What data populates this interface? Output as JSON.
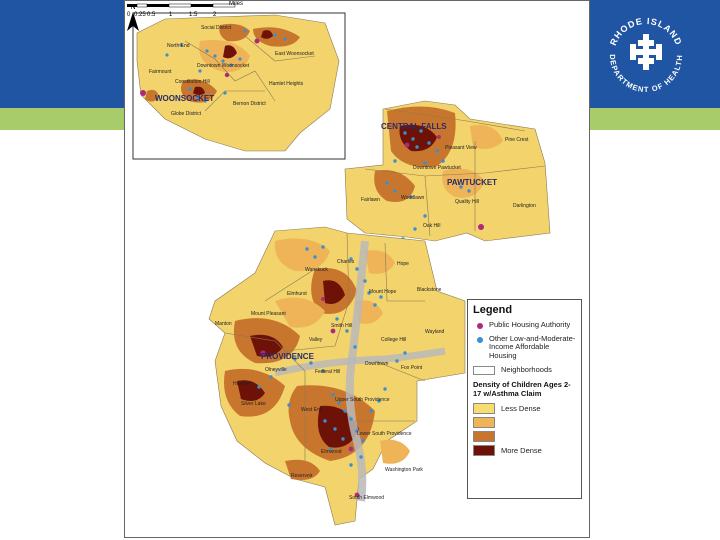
{
  "header": {
    "colors": {
      "band": "#1f55a3",
      "accent_stripe": "#a9cc6b"
    },
    "logo": {
      "icon": "ri-department-of-health-seal-icon",
      "text_top": "RHODE ISLAND",
      "text_bottom": "DEPARTMENT OF HEALTH"
    }
  },
  "map": {
    "inset": {
      "city": "WOONSOCKET",
      "neighborhoods": [
        "North End",
        "Social District",
        "East Woonsocket",
        "Fairmount",
        "Downtown Woonsocket",
        "Constitution Hill",
        "Globe District",
        "Bernon District",
        "Hamlet Heights"
      ]
    },
    "cities": [
      "CENTRAL FALLS",
      "PAWTUCKET",
      "PROVIDENCE"
    ],
    "neighborhoods": [
      "Fairlawn",
      "Pleasant View",
      "Downtown Pawtucket",
      "Pine Crest",
      "Quality Hill",
      "Darlington",
      "Woodlawn",
      "Oak Hill",
      "Charles",
      "Hope",
      "Wanskuck",
      "Elmhurst",
      "Mount Hope",
      "Blackstone",
      "Mount Pleasant",
      "Smith Hill",
      "Manton",
      "College Hill",
      "Wayland",
      "Valley",
      "Olneyville",
      "Federal Hill",
      "Downtown",
      "Fox Point",
      "Hartford",
      "Silver Lake",
      "West End",
      "Upper South Providence",
      "Lower South Providence",
      "Elmwood",
      "Reservoir",
      "Washington Park",
      "South Elmwood"
    ],
    "density_colors": [
      "#f7dc6f",
      "#eeb457",
      "#c8762e",
      "#6e1207"
    ]
  },
  "legend": {
    "title": "Legend",
    "items": [
      {
        "label": "Public Housing Authority",
        "color": "#b0287a"
      },
      {
        "label": "Other Low-and-Moderate-Income Affordable Housing",
        "color": "#3a8fd0"
      }
    ],
    "neighborhoods_label": "Neighborhoods",
    "density_title": "Density of Children Ages 2-17 w/Asthma Claim",
    "density": [
      {
        "label": "Less Dense",
        "color": "#f7dc6f"
      },
      {
        "label": "",
        "color": "#eeb457"
      },
      {
        "label": "",
        "color": "#c8762e"
      },
      {
        "label": "More Dense",
        "color": "#6e1207"
      }
    ]
  },
  "scale": {
    "ticks": [
      "0",
      "0.25",
      "0.5",
      "1",
      "1.5",
      "2"
    ],
    "unit": "Miles"
  },
  "north": "N"
}
